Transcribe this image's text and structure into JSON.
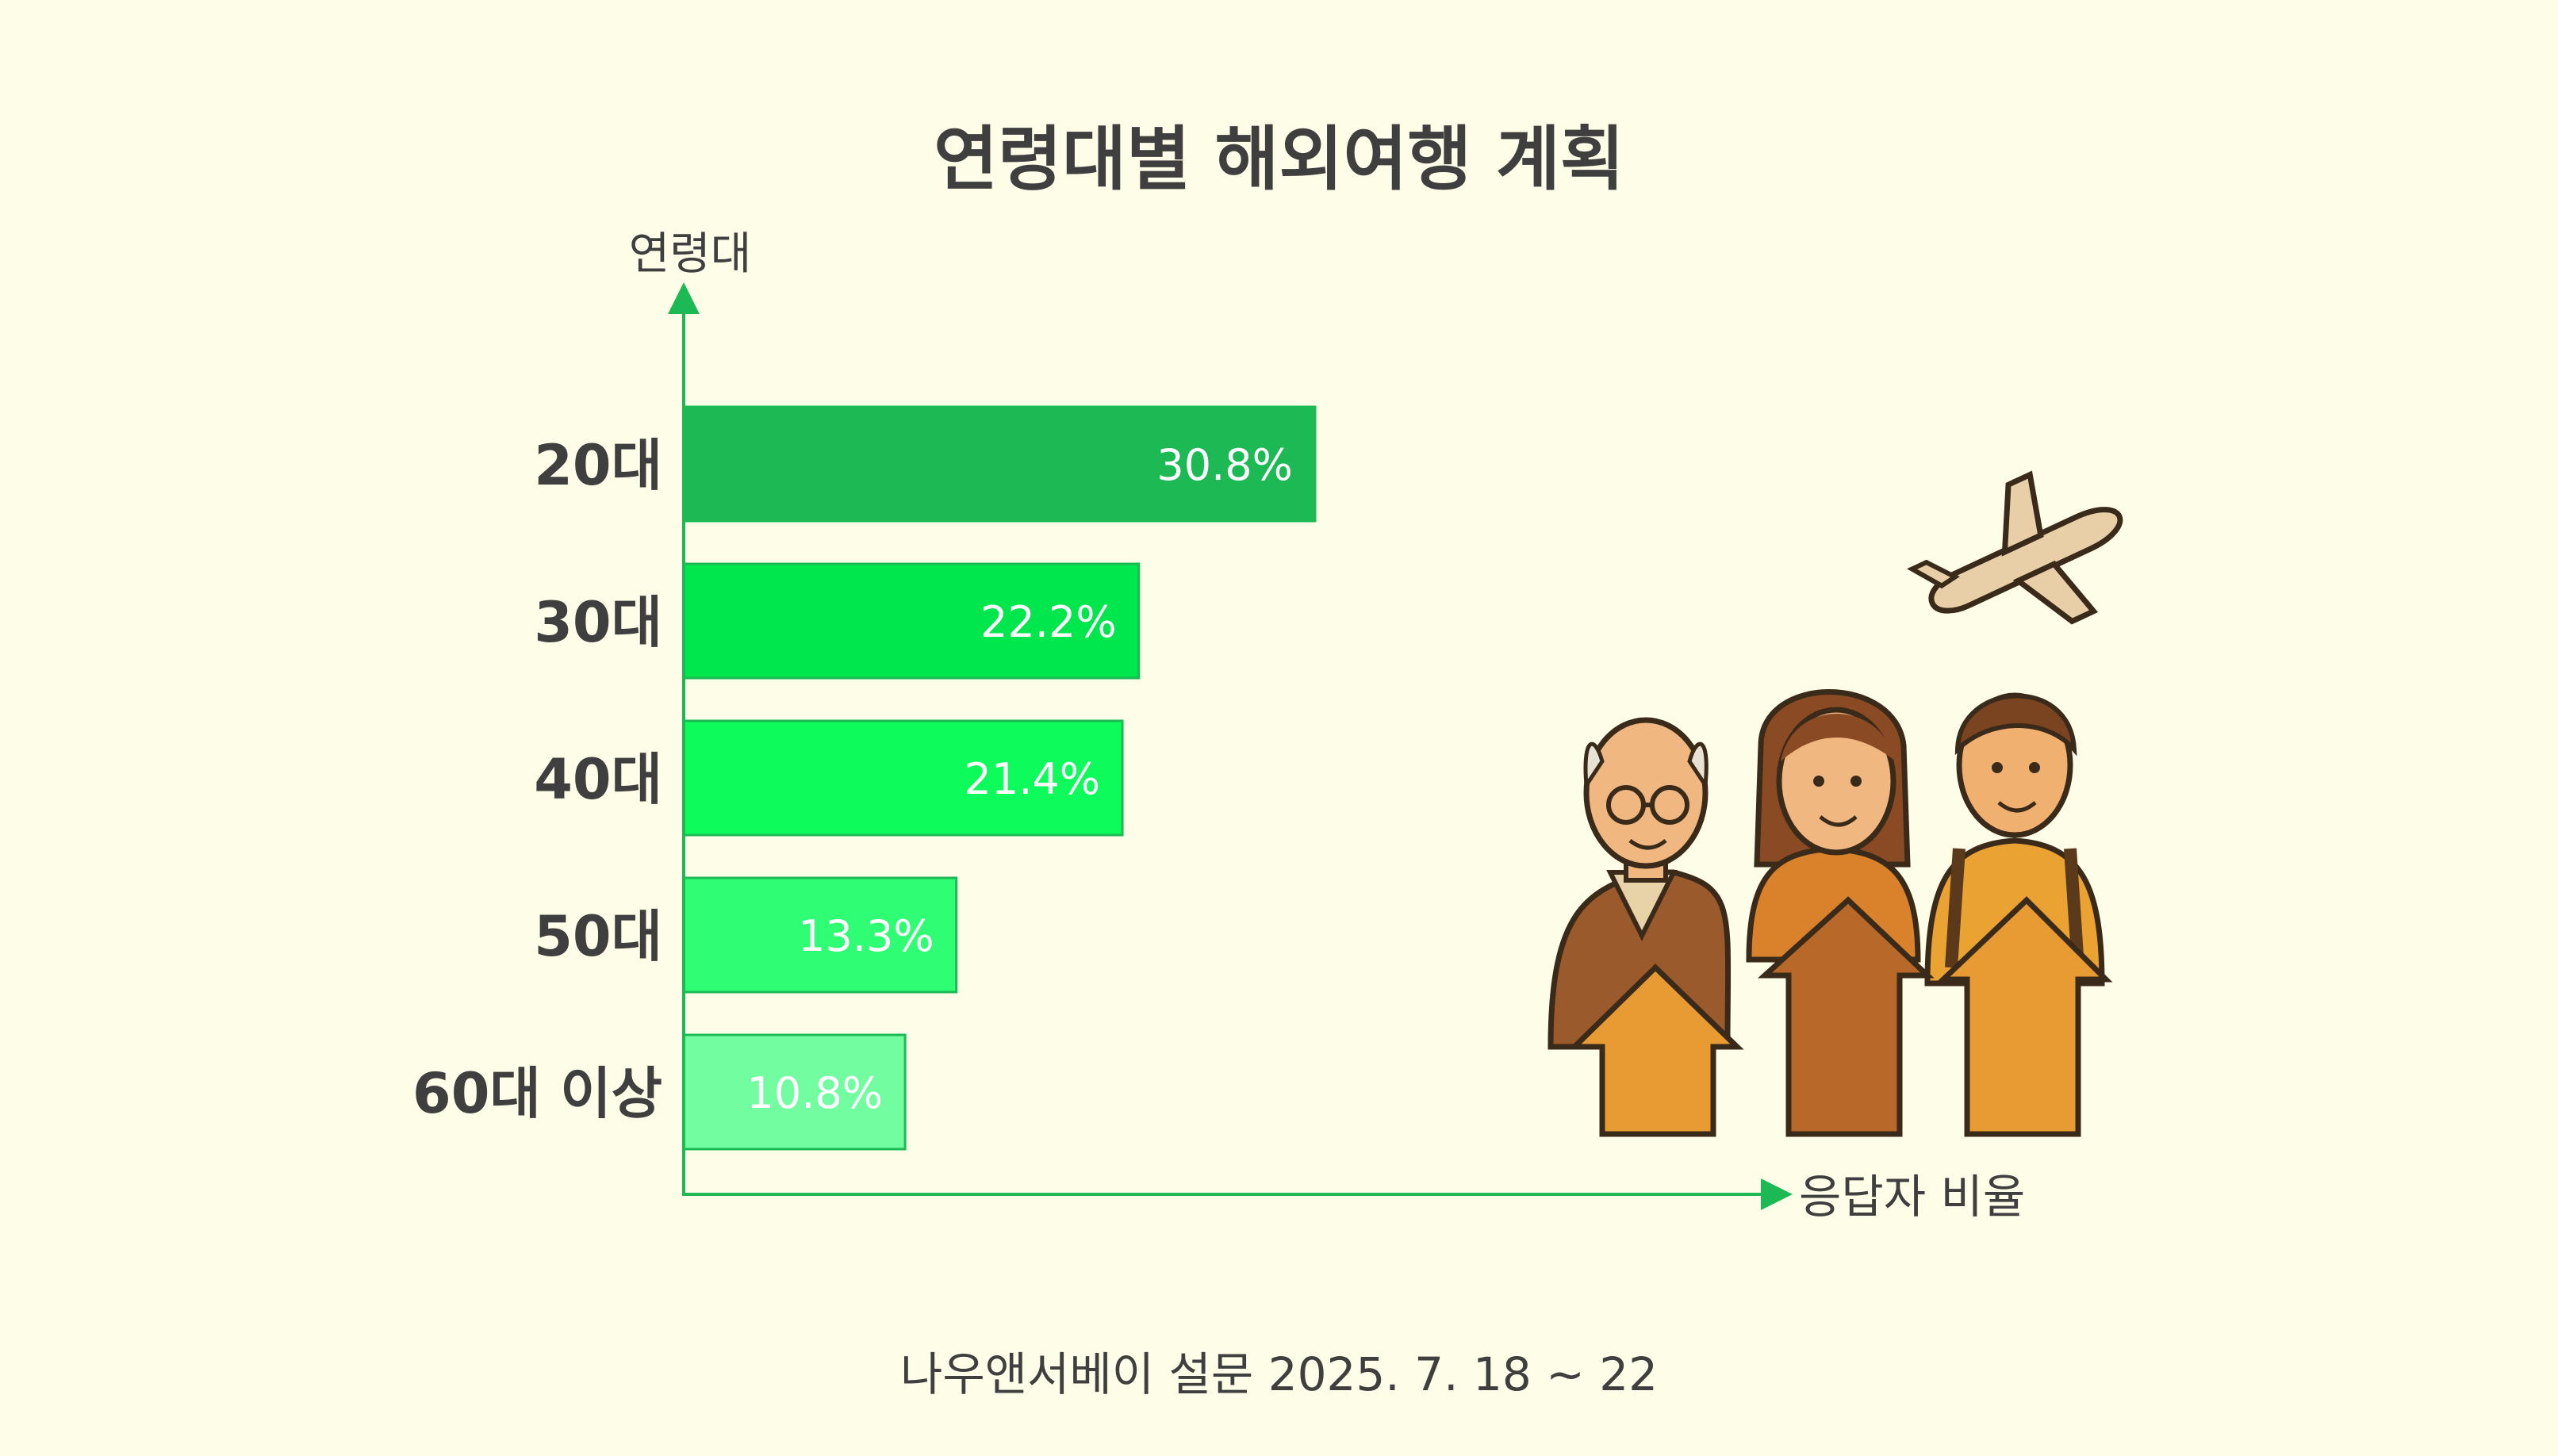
{
  "chart_data": {
    "type": "bar",
    "orientation": "horizontal",
    "title": "연령대별 해외여행 계획",
    "ylabel": "연령대",
    "xlabel": "응답자 비율",
    "categories": [
      "20대",
      "30대",
      "40대",
      "50대",
      "60대 이상"
    ],
    "values": [
      30.8,
      22.2,
      21.4,
      13.3,
      10.8
    ],
    "value_labels": [
      "30.8%",
      "22.2%",
      "21.4%",
      "13.3%",
      "10.8%"
    ],
    "bar_colors": [
      "#1db954",
      "#00e64d",
      "#0dfc5c",
      "#2ffd74",
      "#73fda1"
    ],
    "xlim": [
      0,
      51
    ],
    "grid": false,
    "legend": "none"
  },
  "source": "나우앤서베이 설문 2025. 7. 18 ~ 22",
  "colors": {
    "background": "#fefde8",
    "axis": "#1db954",
    "text": "#3f3f3f"
  },
  "illustration": {
    "icons": [
      "airplane-icon",
      "elderly-man-icon",
      "woman-icon",
      "young-man-icon",
      "up-arrow-icon"
    ]
  }
}
